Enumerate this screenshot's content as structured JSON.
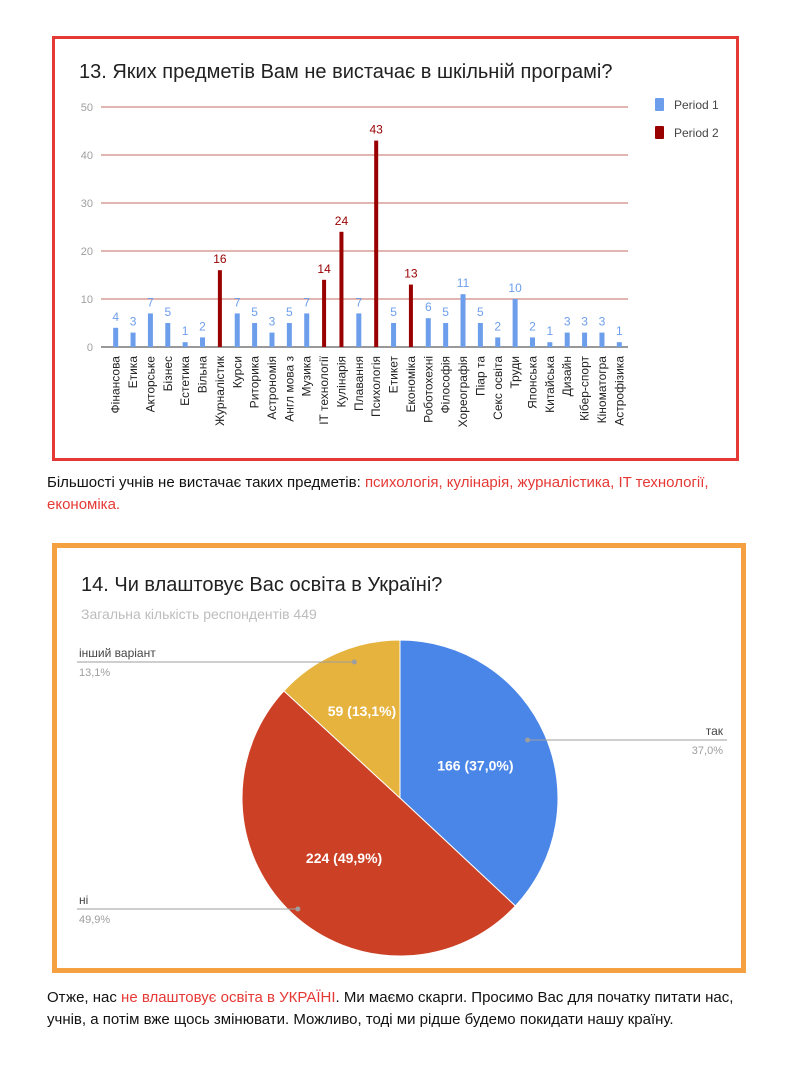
{
  "colors": {
    "period1": "#6d9eeb",
    "period2": "#990000",
    "grid": "#b03a2e",
    "axis_text": "#9e9e9e",
    "pie_yes": "#4a86e8",
    "pie_no": "#cc4125",
    "pie_other": "#e6b33e",
    "highlight": "#e53935"
  },
  "chart1": {
    "title": "13. Яких предметів Вам не вистачає в шкільній програмі?"
  },
  "chart2": {
    "title": "14. Чи влаштовує Вас освіта в Україні?",
    "subtitle": "Загальна кількість респондентів 449"
  },
  "paragraph1": {
    "prefix": "Більшості учнів не вистачає таких предметів: ",
    "highlight": "психологія, кулінарія, журналістика, IT технології, економіка."
  },
  "paragraph2": {
    "prefix": "Отже, нас ",
    "highlight": "не влаштовує освіта в УКРАЇНІ",
    "suffix": ". Ми маємо скарги. Просимо Вас для початку питати нас, учнів, а потім вже щось змінювати. Можливо, тоді ми рідше будемо покидати нашу країну."
  },
  "chart_data": [
    {
      "type": "bar",
      "title": "13. Яких предметів Вам не вистачає в шкільній програмі?",
      "categories": [
        "Фінансова",
        "Етика",
        "Акторське",
        "Бізнес",
        "Естетика",
        "Вільна",
        "Журналістик",
        "Курси",
        "Риторика",
        "Астрономія",
        "Англ мова з",
        "Музика",
        "IT технології",
        "Кулінарія",
        "Плавання",
        "Психологія",
        "Етикет",
        "Економіка",
        "Роботохехні",
        "Філософія",
        "Хореографія",
        "Піар та",
        "Секс освіта",
        "Труди",
        "Японська",
        "Китайська",
        "Дизайн",
        "Кібер-спорт",
        "Кіноматогра",
        "Астрофізика"
      ],
      "series": [
        {
          "name": "Period 1",
          "values": [
            4,
            3,
            7,
            5,
            1,
            2,
            null,
            7,
            5,
            3,
            5,
            7,
            null,
            null,
            7,
            null,
            5,
            null,
            6,
            5,
            11,
            5,
            2,
            10,
            2,
            1,
            3,
            3,
            3,
            1
          ]
        },
        {
          "name": "Period 2",
          "values": [
            null,
            null,
            null,
            null,
            null,
            null,
            16,
            null,
            null,
            null,
            null,
            null,
            14,
            24,
            null,
            43,
            null,
            13,
            null,
            null,
            null,
            null,
            null,
            null,
            null,
            null,
            null,
            null,
            null,
            null
          ]
        }
      ],
      "ylim": [
        0,
        50
      ],
      "yticks": [
        "0",
        "10",
        "20",
        "30",
        "40",
        "50"
      ],
      "grid": true,
      "legend": "right"
    },
    {
      "type": "pie",
      "title": "14. Чи влаштовує Вас освіта в Україні?",
      "subtitle": "Загальна кількість респондентів 449",
      "slices": [
        {
          "label": "так",
          "value": 166,
          "percent": "37,0%",
          "inner": "166 (37,0%)"
        },
        {
          "label": "ні",
          "value": 224,
          "percent": "49,9%",
          "inner": "224 (49,9%)"
        },
        {
          "label": "інший варіант",
          "value": 59,
          "percent": "13,1%",
          "inner": "59 (13,1%)"
        }
      ]
    }
  ]
}
